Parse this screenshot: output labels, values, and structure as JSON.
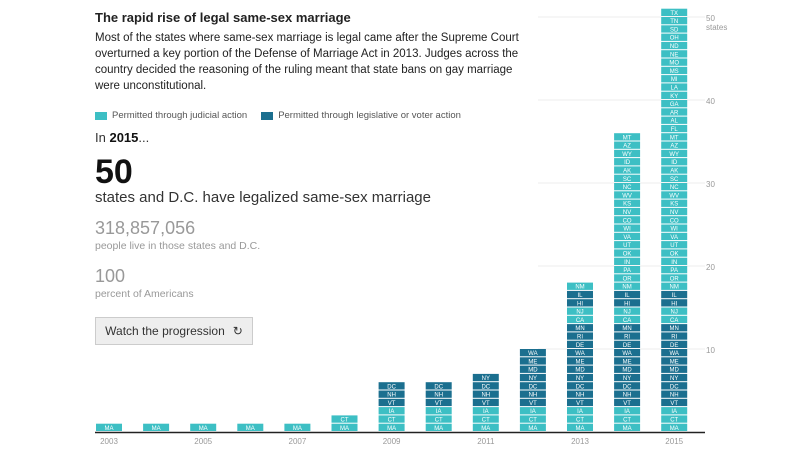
{
  "header": {
    "title": "The rapid rise of legal same-sex marriage",
    "description": "Most of the states where same-sex marriage is legal came after the Supreme Court overturned a key portion of the Defense of Marriage Act in 2013. Judges across the country decided the reasoning of the ruling meant that state bans on gay marriage were unconstitutional."
  },
  "legend": {
    "judicial_label": "Permitted through judicial action",
    "legislative_label": "Permitted through legislative or voter action"
  },
  "colors": {
    "judicial": "#3dbfc4",
    "legislative": "#1b6f8f",
    "axis": "#222222",
    "grid": "#ececec",
    "muted_text": "#999999"
  },
  "summary": {
    "year_prefix": "In",
    "year": "2015",
    "year_suffix": "...",
    "count": "50",
    "count_label": "states and D.C. have legalized same-sex marriage",
    "population": "318,857,056",
    "population_label": "people live in those states and D.C.",
    "percent": "100",
    "percent_label": "percent of Americans"
  },
  "controls": {
    "watch_label": "Watch the progression",
    "watch_icon": "replay-icon"
  },
  "chart_data": {
    "type": "bar",
    "stacked": true,
    "x_tick_labels": [
      "2003",
      "2005",
      "2007",
      "2009",
      "2011",
      "2013",
      "2015"
    ],
    "y_ticks": [
      "10",
      "20",
      "30",
      "40",
      "50"
    ],
    "y_top_label": "states",
    "ylim": [
      0,
      50
    ],
    "grid": true,
    "years": [
      {
        "year": "2003",
        "states": [
          {
            "s": "MA",
            "t": "j"
          }
        ]
      },
      {
        "year": "2004",
        "states": [
          {
            "s": "MA",
            "t": "j"
          }
        ]
      },
      {
        "year": "2005",
        "states": [
          {
            "s": "MA",
            "t": "j"
          }
        ]
      },
      {
        "year": "2006",
        "states": [
          {
            "s": "MA",
            "t": "j"
          }
        ]
      },
      {
        "year": "2007",
        "states": [
          {
            "s": "MA",
            "t": "j"
          }
        ]
      },
      {
        "year": "2008",
        "states": [
          {
            "s": "MA",
            "t": "j"
          },
          {
            "s": "CT",
            "t": "j"
          }
        ]
      },
      {
        "year": "2009",
        "states": [
          {
            "s": "MA",
            "t": "j"
          },
          {
            "s": "CT",
            "t": "j"
          },
          {
            "s": "IA",
            "t": "j"
          },
          {
            "s": "VT",
            "t": "l"
          },
          {
            "s": "NH",
            "t": "l"
          },
          {
            "s": "DC",
            "t": "l"
          }
        ]
      },
      {
        "year": "2010",
        "states": [
          {
            "s": "MA",
            "t": "j"
          },
          {
            "s": "CT",
            "t": "j"
          },
          {
            "s": "IA",
            "t": "j"
          },
          {
            "s": "VT",
            "t": "l"
          },
          {
            "s": "NH",
            "t": "l"
          },
          {
            "s": "DC",
            "t": "l"
          }
        ]
      },
      {
        "year": "2011",
        "states": [
          {
            "s": "MA",
            "t": "j"
          },
          {
            "s": "CT",
            "t": "j"
          },
          {
            "s": "IA",
            "t": "j"
          },
          {
            "s": "VT",
            "t": "l"
          },
          {
            "s": "NH",
            "t": "l"
          },
          {
            "s": "DC",
            "t": "l"
          },
          {
            "s": "NY",
            "t": "l"
          }
        ]
      },
      {
        "year": "2012",
        "states": [
          {
            "s": "MA",
            "t": "j"
          },
          {
            "s": "CT",
            "t": "j"
          },
          {
            "s": "IA",
            "t": "j"
          },
          {
            "s": "VT",
            "t": "l"
          },
          {
            "s": "NH",
            "t": "l"
          },
          {
            "s": "DC",
            "t": "l"
          },
          {
            "s": "NY",
            "t": "l"
          },
          {
            "s": "MD",
            "t": "l"
          },
          {
            "s": "ME",
            "t": "l"
          },
          {
            "s": "WA",
            "t": "l"
          }
        ]
      },
      {
        "year": "2013",
        "states": [
          {
            "s": "MA",
            "t": "j"
          },
          {
            "s": "CT",
            "t": "j"
          },
          {
            "s": "IA",
            "t": "j"
          },
          {
            "s": "VT",
            "t": "l"
          },
          {
            "s": "NH",
            "t": "l"
          },
          {
            "s": "DC",
            "t": "l"
          },
          {
            "s": "NY",
            "t": "l"
          },
          {
            "s": "MD",
            "t": "l"
          },
          {
            "s": "ME",
            "t": "l"
          },
          {
            "s": "WA",
            "t": "l"
          },
          {
            "s": "DE",
            "t": "l"
          },
          {
            "s": "RI",
            "t": "l"
          },
          {
            "s": "MN",
            "t": "l"
          },
          {
            "s": "CA",
            "t": "j"
          },
          {
            "s": "NJ",
            "t": "j"
          },
          {
            "s": "HI",
            "t": "l"
          },
          {
            "s": "IL",
            "t": "l"
          },
          {
            "s": "NM",
            "t": "j"
          }
        ]
      },
      {
        "year": "2014",
        "states": [
          {
            "s": "MA",
            "t": "j"
          },
          {
            "s": "CT",
            "t": "j"
          },
          {
            "s": "IA",
            "t": "j"
          },
          {
            "s": "VT",
            "t": "l"
          },
          {
            "s": "NH",
            "t": "l"
          },
          {
            "s": "DC",
            "t": "l"
          },
          {
            "s": "NY",
            "t": "l"
          },
          {
            "s": "MD",
            "t": "l"
          },
          {
            "s": "ME",
            "t": "l"
          },
          {
            "s": "WA",
            "t": "l"
          },
          {
            "s": "DE",
            "t": "l"
          },
          {
            "s": "RI",
            "t": "l"
          },
          {
            "s": "MN",
            "t": "l"
          },
          {
            "s": "CA",
            "t": "j"
          },
          {
            "s": "NJ",
            "t": "j"
          },
          {
            "s": "HI",
            "t": "l"
          },
          {
            "s": "IL",
            "t": "l"
          },
          {
            "s": "NM",
            "t": "j"
          },
          {
            "s": "OR",
            "t": "j"
          },
          {
            "s": "PA",
            "t": "j"
          },
          {
            "s": "IN",
            "t": "j"
          },
          {
            "s": "OK",
            "t": "j"
          },
          {
            "s": "UT",
            "t": "j"
          },
          {
            "s": "VA",
            "t": "j"
          },
          {
            "s": "WI",
            "t": "j"
          },
          {
            "s": "CO",
            "t": "j"
          },
          {
            "s": "NV",
            "t": "j"
          },
          {
            "s": "KS",
            "t": "j"
          },
          {
            "s": "WV",
            "t": "j"
          },
          {
            "s": "NC",
            "t": "j"
          },
          {
            "s": "SC",
            "t": "j"
          },
          {
            "s": "AK",
            "t": "j"
          },
          {
            "s": "ID",
            "t": "j"
          },
          {
            "s": "WY",
            "t": "j"
          },
          {
            "s": "AZ",
            "t": "j"
          },
          {
            "s": "MT",
            "t": "j"
          }
        ]
      },
      {
        "year": "2015",
        "states": [
          {
            "s": "MA",
            "t": "j"
          },
          {
            "s": "CT",
            "t": "j"
          },
          {
            "s": "IA",
            "t": "j"
          },
          {
            "s": "VT",
            "t": "l"
          },
          {
            "s": "NH",
            "t": "l"
          },
          {
            "s": "DC",
            "t": "l"
          },
          {
            "s": "NY",
            "t": "l"
          },
          {
            "s": "MD",
            "t": "l"
          },
          {
            "s": "ME",
            "t": "l"
          },
          {
            "s": "WA",
            "t": "l"
          },
          {
            "s": "DE",
            "t": "l"
          },
          {
            "s": "RI",
            "t": "l"
          },
          {
            "s": "MN",
            "t": "l"
          },
          {
            "s": "CA",
            "t": "j"
          },
          {
            "s": "NJ",
            "t": "j"
          },
          {
            "s": "HI",
            "t": "l"
          },
          {
            "s": "IL",
            "t": "l"
          },
          {
            "s": "NM",
            "t": "j"
          },
          {
            "s": "OR",
            "t": "j"
          },
          {
            "s": "PA",
            "t": "j"
          },
          {
            "s": "IN",
            "t": "j"
          },
          {
            "s": "OK",
            "t": "j"
          },
          {
            "s": "UT",
            "t": "j"
          },
          {
            "s": "VA",
            "t": "j"
          },
          {
            "s": "WI",
            "t": "j"
          },
          {
            "s": "CO",
            "t": "j"
          },
          {
            "s": "NV",
            "t": "j"
          },
          {
            "s": "KS",
            "t": "j"
          },
          {
            "s": "WV",
            "t": "j"
          },
          {
            "s": "NC",
            "t": "j"
          },
          {
            "s": "SC",
            "t": "j"
          },
          {
            "s": "AK",
            "t": "j"
          },
          {
            "s": "ID",
            "t": "j"
          },
          {
            "s": "WY",
            "t": "j"
          },
          {
            "s": "AZ",
            "t": "j"
          },
          {
            "s": "MT",
            "t": "j"
          },
          {
            "s": "FL",
            "t": "j"
          },
          {
            "s": "AL",
            "t": "j"
          },
          {
            "s": "AR",
            "t": "j"
          },
          {
            "s": "GA",
            "t": "j"
          },
          {
            "s": "KY",
            "t": "j"
          },
          {
            "s": "LA",
            "t": "j"
          },
          {
            "s": "MI",
            "t": "j"
          },
          {
            "s": "MS",
            "t": "j"
          },
          {
            "s": "MO",
            "t": "j"
          },
          {
            "s": "NE",
            "t": "j"
          },
          {
            "s": "ND",
            "t": "j"
          },
          {
            "s": "OH",
            "t": "j"
          },
          {
            "s": "SD",
            "t": "j"
          },
          {
            "s": "TN",
            "t": "j"
          },
          {
            "s": "TX",
            "t": "j"
          }
        ]
      }
    ]
  }
}
